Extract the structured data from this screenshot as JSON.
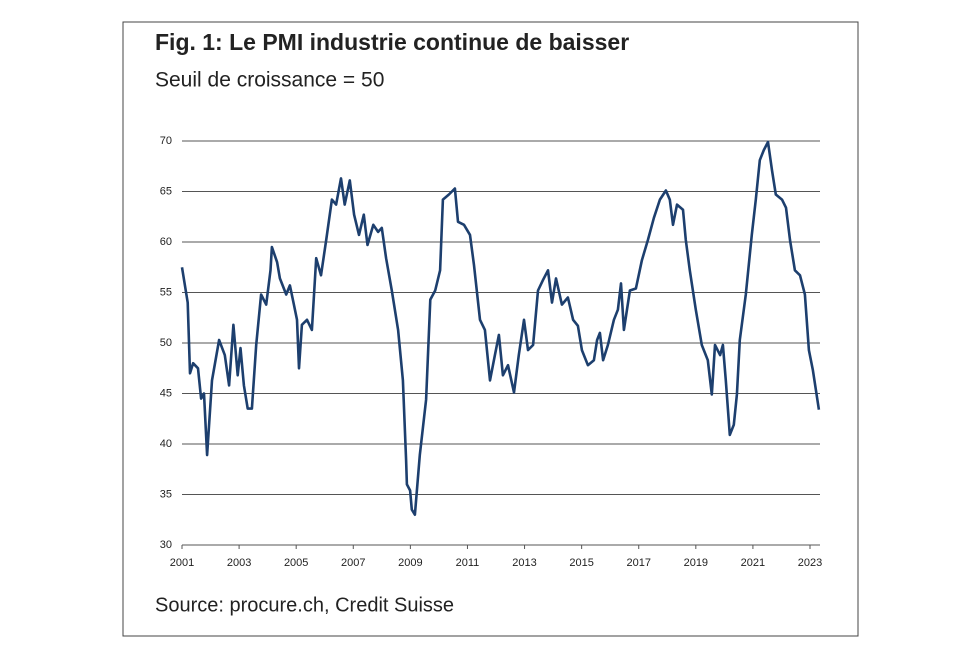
{
  "chart_data": {
    "type": "line",
    "title": "Fig. 1: Le PMI industrie continue de baisser",
    "subtitle": "Seuil de croissance = 50",
    "source": "Source: procure.ch, Credit Suisse",
    "color": "#1d3f6e",
    "grid": true,
    "xlim": [
      2001,
      2023.35
    ],
    "xticks": [
      2001,
      2003,
      2005,
      2007,
      2009,
      2011,
      2013,
      2015,
      2017,
      2019,
      2021,
      2023
    ],
    "ylim": [
      30,
      70
    ],
    "yticks": [
      30,
      35,
      40,
      45,
      50,
      55,
      60,
      65,
      70
    ],
    "x": [
      2001.0,
      2001.2,
      2001.28,
      2001.39,
      2001.56,
      2001.67,
      2001.77,
      2001.88,
      2002.05,
      2002.3,
      2002.5,
      2002.65,
      2002.8,
      2002.95,
      2003.05,
      2003.17,
      2003.3,
      2003.45,
      2003.6,
      2003.77,
      2003.95,
      2004.1,
      2004.15,
      2004.33,
      2004.43,
      2004.65,
      2004.78,
      2004.92,
      2005.03,
      2005.1,
      2005.2,
      2005.38,
      2005.55,
      2005.7,
      2005.87,
      2006.05,
      2006.25,
      2006.4,
      2006.57,
      2006.7,
      2006.88,
      2007.03,
      2007.2,
      2007.37,
      2007.5,
      2007.7,
      2007.87,
      2008.0,
      2008.15,
      2008.35,
      2008.57,
      2008.74,
      2008.85,
      2008.88,
      2008.99,
      2009.05,
      2009.16,
      2009.33,
      2009.55,
      2009.7,
      2009.87,
      2010.04,
      2010.14,
      2010.35,
      2010.56,
      2010.67,
      2010.88,
      2011.09,
      2011.23,
      2011.44,
      2011.61,
      2011.79,
      2011.96,
      2012.1,
      2012.24,
      2012.42,
      2012.63,
      2012.8,
      2012.98,
      2013.12,
      2013.3,
      2013.47,
      2013.64,
      2013.82,
      2013.96,
      2014.1,
      2014.31,
      2014.52,
      2014.7,
      2014.87,
      2015.01,
      2015.22,
      2015.43,
      2015.54,
      2015.64,
      2015.75,
      2015.92,
      2016.13,
      2016.27,
      2016.38,
      2016.48,
      2016.69,
      2016.9,
      2017.11,
      2017.32,
      2017.53,
      2017.74,
      2017.95,
      2018.09,
      2018.2,
      2018.34,
      2018.55,
      2018.65,
      2018.79,
      2019.0,
      2019.21,
      2019.42,
      2019.56,
      2019.67,
      2019.85,
      2019.95,
      2020.05,
      2020.19,
      2020.33,
      2020.44,
      2020.54,
      2020.75,
      2020.96,
      2021.1,
      2021.24,
      2021.38,
      2021.53,
      2021.67,
      2021.8,
      2022.02,
      2022.16,
      2022.3,
      2022.47,
      2022.65,
      2022.82,
      2022.96,
      2023.1,
      2023.31
    ],
    "series": [
      {
        "name": "PMI industrie",
        "color": "#1d3f6e",
        "values": [
          57.5,
          54,
          47,
          48,
          47.5,
          44.5,
          45,
          38.9,
          46.3,
          50.3,
          48.8,
          45.8,
          51.8,
          46.8,
          49.5,
          45.8,
          43.5,
          43.5,
          49.8,
          54.8,
          53.8,
          57.2,
          59.5,
          58,
          56.4,
          54.8,
          55.7,
          53.8,
          52.3,
          47.5,
          51.8,
          52.3,
          51.3,
          58.4,
          56.7,
          60.2,
          64.2,
          63.7,
          66.3,
          63.7,
          66.1,
          62.7,
          60.7,
          62.7,
          59.7,
          61.7,
          61,
          61.4,
          58.4,
          55.2,
          51.3,
          46.3,
          38.4,
          36,
          35.4,
          33.5,
          33,
          38.9,
          44.4,
          54.3,
          55.2,
          57.2,
          64.2,
          64.7,
          65.3,
          62,
          61.7,
          60.7,
          57.7,
          52.3,
          51.3,
          46.3,
          48.8,
          50.8,
          46.8,
          47.8,
          45.1,
          48.8,
          52.3,
          49.3,
          49.8,
          55.2,
          56.2,
          57.2,
          54,
          56.4,
          53.8,
          54.5,
          52.3,
          51.7,
          49.3,
          47.8,
          48.3,
          50.3,
          51,
          48.3,
          49.8,
          52.3,
          53.3,
          55.9,
          51.3,
          55.2,
          55.4,
          58.2,
          60.2,
          62.4,
          64.2,
          65.1,
          64.2,
          61.7,
          63.7,
          63.2,
          60.2,
          57.2,
          53.3,
          49.8,
          48.3,
          44.9,
          49.8,
          48.8,
          49.8,
          46.3,
          40.9,
          41.9,
          44.9,
          50.3,
          54.8,
          60.7,
          64.2,
          68.1,
          69.1,
          69.9,
          67.1,
          64.7,
          64.2,
          63.4,
          60.2,
          57.2,
          56.7,
          54.8,
          49.3,
          47.3,
          43.4
        ]
      }
    ]
  }
}
